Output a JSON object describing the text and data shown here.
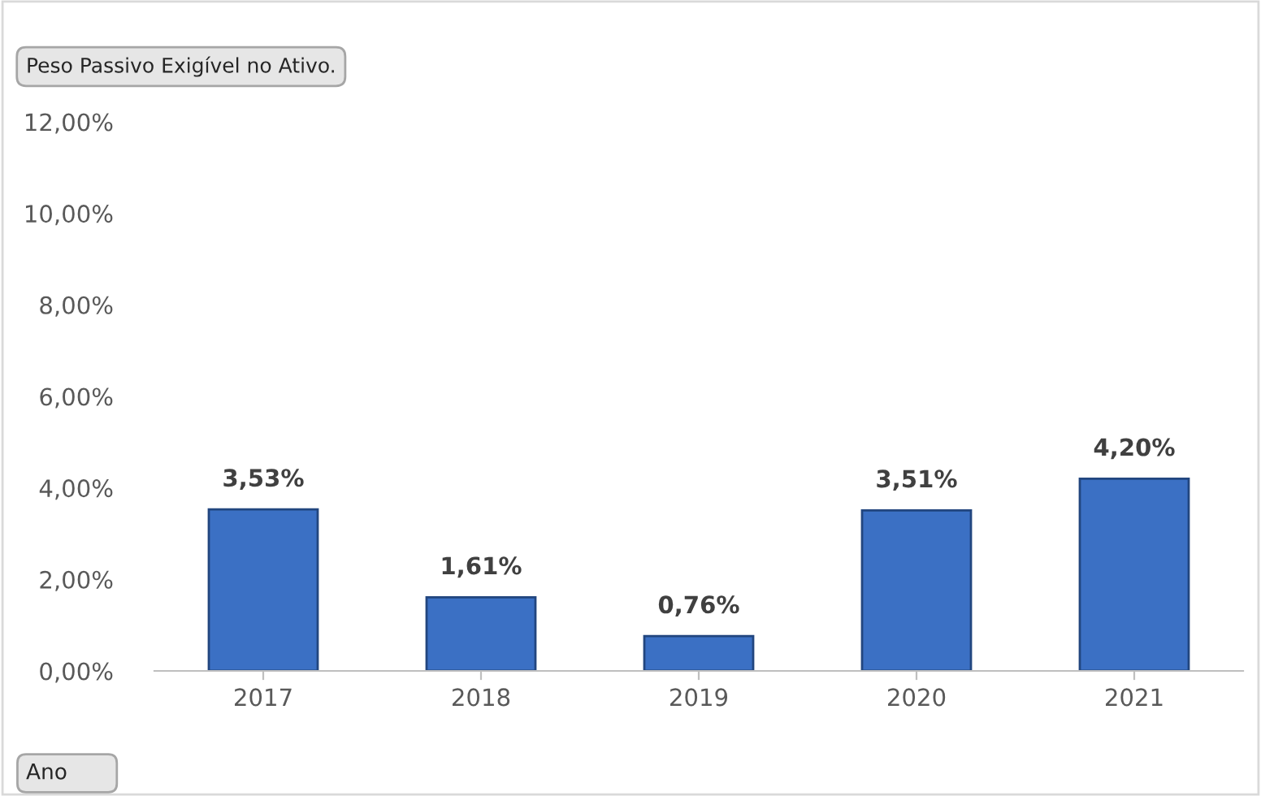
{
  "chart_data": {
    "type": "bar",
    "title": "Peso Passivo Exigível no Ativo.",
    "xlabel": "Ano",
    "categories": [
      "2017",
      "2018",
      "2019",
      "2020",
      "2021"
    ],
    "values": [
      3.53,
      1.61,
      0.76,
      3.51,
      4.2
    ],
    "value_labels": [
      "3,53%",
      "1,61%",
      "0,76%",
      "3,51%",
      "4,20%"
    ],
    "color": "#3b70c4",
    "ylim": [
      0,
      12
    ],
    "yticks": [
      {
        "value": 0,
        "label": "0,00%"
      },
      {
        "value": 2,
        "label": "2,00%"
      },
      {
        "value": 4,
        "label": "4,00%"
      },
      {
        "value": 6,
        "label": "6,00%"
      },
      {
        "value": 8,
        "label": "8,00%"
      },
      {
        "value": 10,
        "label": "10,00%"
      },
      {
        "value": 12,
        "label": "12,00%"
      }
    ],
    "grid": false,
    "legend": false
  }
}
